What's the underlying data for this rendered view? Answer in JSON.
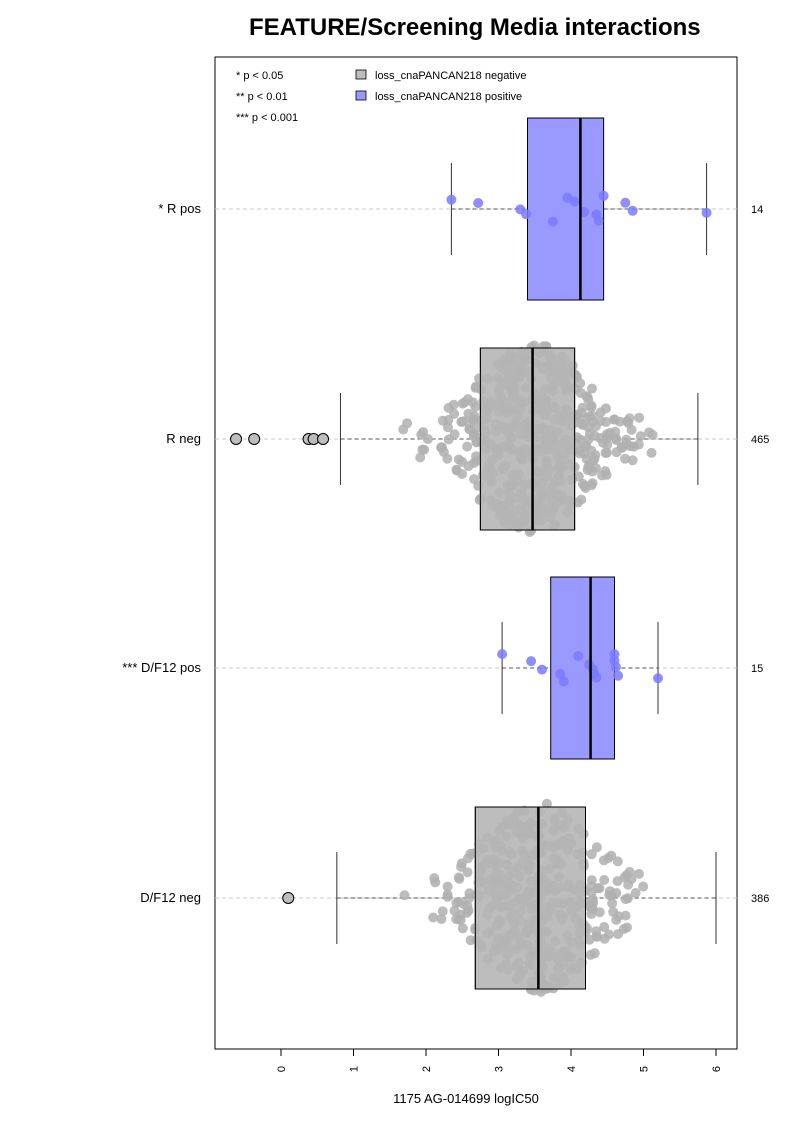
{
  "chart_data": {
    "type": "boxplot",
    "title": "FEATURE/Screening Media interactions",
    "xlabel": "1175 AG-014699 logIC50",
    "xlim": [
      -0.9,
      6.3
    ],
    "xticks": [
      "0",
      "1",
      "2",
      "3",
      "4",
      "5",
      "6"
    ],
    "legend": {
      "placement": "top",
      "significance": [
        "* p < 0.05",
        "** p < 0.01",
        "*** p < 0.001"
      ],
      "series": [
        {
          "name": "loss_cnaPANCAN218 negative",
          "color": "#bdbdbd"
        },
        {
          "name": "loss_cnaPANCAN218 positive",
          "color": "#9999ff"
        }
      ]
    },
    "groups": [
      {
        "label": "* R pos",
        "n": "14",
        "color": "#9999ff",
        "point_color": "#7a7aff",
        "whisker_low": 2.35,
        "q1": 3.4,
        "median": 4.13,
        "q3": 4.45,
        "whisker_high": 5.87,
        "points": [
          2.35,
          2.72,
          3.3,
          3.38,
          3.75,
          3.95,
          4.05,
          4.18,
          4.35,
          4.38,
          4.45,
          4.75,
          4.85,
          5.87
        ],
        "outliers": []
      },
      {
        "label": "R neg",
        "n": "465",
        "color": "#bdbdbd",
        "point_color": "#b0b0b0",
        "whisker_low": 0.82,
        "q1": 2.75,
        "median": 3.47,
        "q3": 4.05,
        "whisker_high": 5.75,
        "points": [],
        "outliers": [
          -0.62,
          -0.37,
          0.38,
          0.45,
          0.58
        ]
      },
      {
        "label": "*** D/F12 pos",
        "n": "15",
        "color": "#9999ff",
        "point_color": "#7a7aff",
        "whisker_low": 3.05,
        "q1": 3.72,
        "median": 4.27,
        "q3": 4.6,
        "whisker_high": 5.2,
        "points": [
          3.05,
          3.45,
          3.6,
          3.85,
          3.9,
          4.1,
          4.25,
          4.3,
          4.32,
          4.35,
          4.6,
          4.6,
          4.62,
          4.65,
          5.2
        ],
        "outliers": []
      },
      {
        "label": "D/F12 neg",
        "n": "386",
        "color": "#bdbdbd",
        "point_color": "#b0b0b0",
        "whisker_low": 0.77,
        "q1": 2.68,
        "median": 3.55,
        "q3": 4.2,
        "whisker_high": 6.0,
        "points": [],
        "outliers": [
          0.1
        ]
      }
    ]
  }
}
